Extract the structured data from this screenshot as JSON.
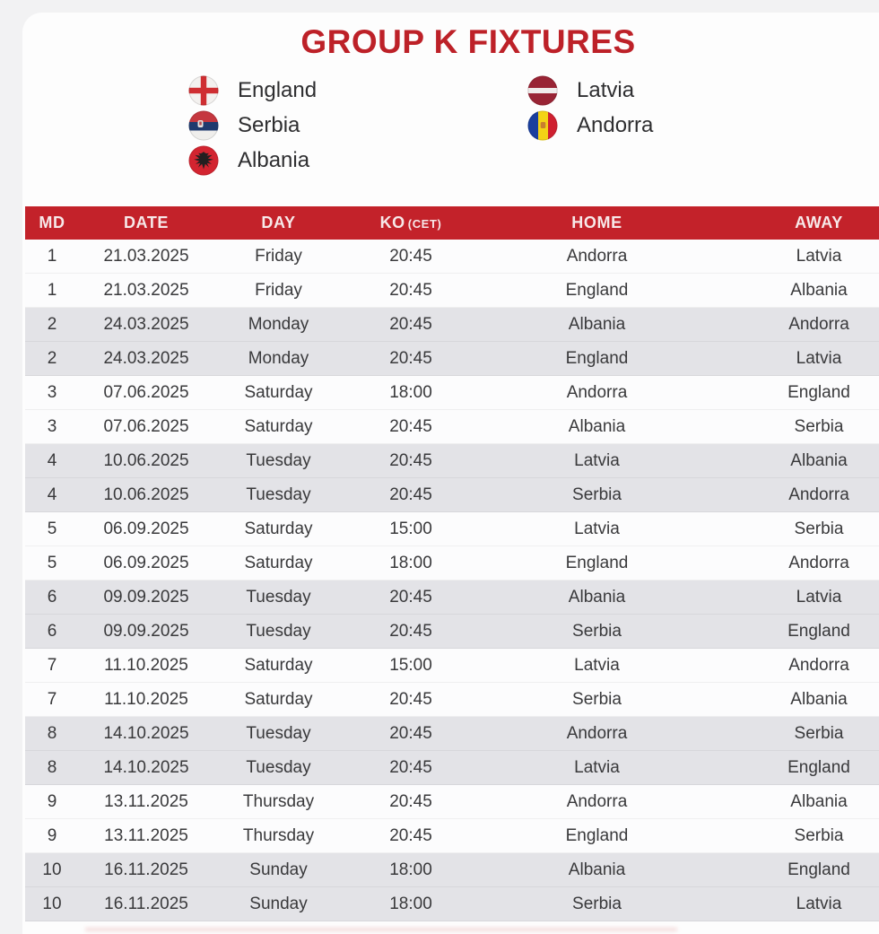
{
  "title": "GROUP K FIXTURES",
  "colors": {
    "accent_red": "#c3222a",
    "title_red": "#bd2128",
    "alt_row_gray": "#e3e3e7",
    "row_white": "#fcfcfd",
    "row_text": "#39393b"
  },
  "legend": {
    "columns": [
      [
        {
          "team": "England",
          "flag_icon": "england-flag-icon"
        },
        {
          "team": "Serbia",
          "flag_icon": "serbia-flag-icon"
        },
        {
          "team": "Albania",
          "flag_icon": "albania-flag-icon"
        }
      ],
      [
        {
          "team": "Latvia",
          "flag_icon": "latvia-flag-icon"
        },
        {
          "team": "Andorra",
          "flag_icon": "andorra-flag-icon"
        }
      ]
    ]
  },
  "table": {
    "headers": [
      {
        "label": "MD",
        "suffix": ""
      },
      {
        "label": "DATE",
        "suffix": ""
      },
      {
        "label": "DAY",
        "suffix": ""
      },
      {
        "label": "KO",
        "suffix": "(CET)"
      },
      {
        "label": "HOME",
        "suffix": ""
      },
      {
        "label": "AWAY",
        "suffix": ""
      }
    ],
    "rows": [
      {
        "md": "1",
        "date": "21.03.2025",
        "day": "Friday",
        "ko": "20:45",
        "home": "Andorra",
        "away": "Latvia"
      },
      {
        "md": "1",
        "date": "21.03.2025",
        "day": "Friday",
        "ko": "20:45",
        "home": "England",
        "away": "Albania"
      },
      {
        "md": "2",
        "date": "24.03.2025",
        "day": "Monday",
        "ko": "20:45",
        "home": "Albania",
        "away": "Andorra"
      },
      {
        "md": "2",
        "date": "24.03.2025",
        "day": "Monday",
        "ko": "20:45",
        "home": "England",
        "away": "Latvia"
      },
      {
        "md": "3",
        "date": "07.06.2025",
        "day": "Saturday",
        "ko": "18:00",
        "home": "Andorra",
        "away": "England"
      },
      {
        "md": "3",
        "date": "07.06.2025",
        "day": "Saturday",
        "ko": "20:45",
        "home": "Albania",
        "away": "Serbia"
      },
      {
        "md": "4",
        "date": "10.06.2025",
        "day": "Tuesday",
        "ko": "20:45",
        "home": "Latvia",
        "away": "Albania"
      },
      {
        "md": "4",
        "date": "10.06.2025",
        "day": "Tuesday",
        "ko": "20:45",
        "home": "Serbia",
        "away": "Andorra"
      },
      {
        "md": "5",
        "date": "06.09.2025",
        "day": "Saturday",
        "ko": "15:00",
        "home": "Latvia",
        "away": "Serbia"
      },
      {
        "md": "5",
        "date": "06.09.2025",
        "day": "Saturday",
        "ko": "18:00",
        "home": "England",
        "away": "Andorra"
      },
      {
        "md": "6",
        "date": "09.09.2025",
        "day": "Tuesday",
        "ko": "20:45",
        "home": "Albania",
        "away": "Latvia"
      },
      {
        "md": "6",
        "date": "09.09.2025",
        "day": "Tuesday",
        "ko": "20:45",
        "home": "Serbia",
        "away": "England"
      },
      {
        "md": "7",
        "date": "11.10.2025",
        "day": "Saturday",
        "ko": "15:00",
        "home": "Latvia",
        "away": "Andorra"
      },
      {
        "md": "7",
        "date": "11.10.2025",
        "day": "Saturday",
        "ko": "20:45",
        "home": "Serbia",
        "away": "Albania"
      },
      {
        "md": "8",
        "date": "14.10.2025",
        "day": "Tuesday",
        "ko": "20:45",
        "home": "Andorra",
        "away": "Serbia"
      },
      {
        "md": "8",
        "date": "14.10.2025",
        "day": "Tuesday",
        "ko": "20:45",
        "home": "Latvia",
        "away": "England"
      },
      {
        "md": "9",
        "date": "13.11.2025",
        "day": "Thursday",
        "ko": "20:45",
        "home": "Andorra",
        "away": "Albania"
      },
      {
        "md": "9",
        "date": "13.11.2025",
        "day": "Thursday",
        "ko": "20:45",
        "home": "England",
        "away": "Serbia"
      },
      {
        "md": "10",
        "date": "16.11.2025",
        "day": "Sunday",
        "ko": "18:00",
        "home": "Albania",
        "away": "England"
      },
      {
        "md": "10",
        "date": "16.11.2025",
        "day": "Sunday",
        "ko": "18:00",
        "home": "Serbia",
        "away": "Latvia"
      }
    ]
  }
}
